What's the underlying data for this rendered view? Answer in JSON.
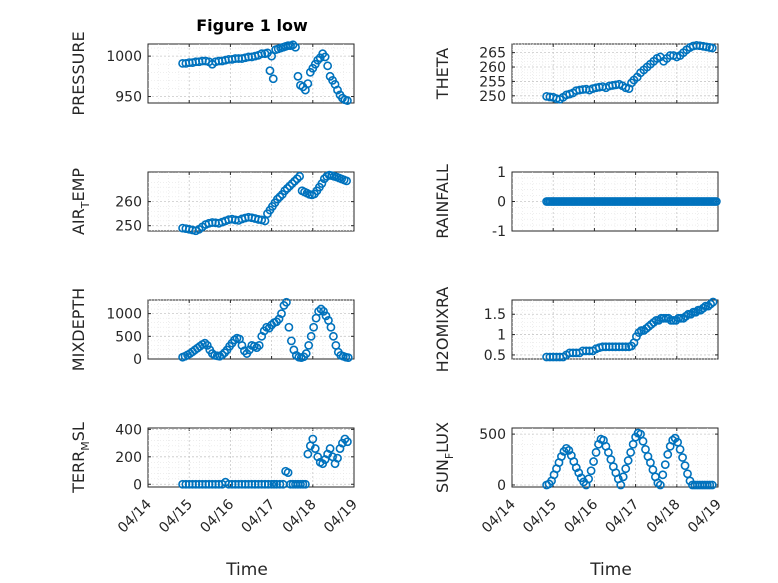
{
  "figure": {
    "title": "Figure 1 low",
    "marker_color": "#0072bd",
    "x_tick_labels": [
      "04/14",
      "04/15",
      "04/16",
      "04/17",
      "04/18",
      "04/19"
    ],
    "xlabel": "Time"
  },
  "chart_data": [
    {
      "type": "scatter",
      "id": "pressure",
      "ylabel": "PRESSURE",
      "ylabel_main": "PRESSURE",
      "ylabel_sub": "",
      "ylabel_rest": "",
      "ylim": [
        942,
        1015
      ],
      "yticks": [
        950,
        1000
      ],
      "x": [
        0.84,
        0.92,
        1.0,
        1.08,
        1.16,
        1.24,
        1.32,
        1.4,
        1.48,
        1.56,
        1.64,
        1.72,
        1.8,
        1.88,
        1.96,
        2.04,
        2.12,
        2.2,
        2.28,
        2.36,
        2.44,
        2.52,
        2.6,
        2.68,
        2.76,
        2.84,
        2.9,
        2.96,
        3.0,
        3.04,
        3.1,
        3.16,
        3.22,
        3.28,
        3.34,
        3.4,
        3.46,
        3.52,
        3.58,
        3.64,
        3.7,
        3.76,
        3.82,
        3.88,
        3.94,
        4.0,
        4.06,
        4.12,
        4.18,
        4.24,
        4.3,
        4.36,
        4.42,
        4.48,
        4.54,
        4.6,
        4.66,
        4.72,
        4.78,
        4.84
      ],
      "y": [
        991,
        991,
        992,
        992,
        993,
        993,
        994,
        994,
        993,
        990,
        993,
        994,
        994,
        995,
        996,
        996,
        997,
        997,
        997,
        998,
        999,
        999,
        1000,
        1001,
        1003,
        1003,
        1004,
        982,
        1000,
        972,
        1008,
        1009,
        1010,
        1011,
        1012,
        1013,
        1013,
        1014,
        1011,
        975,
        964,
        962,
        958,
        966,
        980,
        985,
        990,
        995,
        998,
        1003,
        999,
        988,
        975,
        970,
        965,
        958,
        952,
        948,
        946,
        945
      ]
    },
    {
      "type": "scatter",
      "id": "theta",
      "ylabel": "THETA",
      "ylabel_main": "THETA",
      "ylabel_sub": "",
      "ylabel_rest": "",
      "ylim": [
        247.5,
        268
      ],
      "yticks": [
        250,
        255,
        260,
        265
      ],
      "x": [
        0.84,
        0.92,
        1.0,
        1.08,
        1.16,
        1.24,
        1.32,
        1.4,
        1.48,
        1.56,
        1.64,
        1.72,
        1.8,
        1.88,
        1.96,
        2.04,
        2.12,
        2.2,
        2.28,
        2.36,
        2.44,
        2.52,
        2.6,
        2.68,
        2.76,
        2.84,
        2.9,
        2.96,
        3.04,
        3.12,
        3.2,
        3.28,
        3.36,
        3.44,
        3.52,
        3.6,
        3.68,
        3.76,
        3.84,
        3.92,
        4.0,
        4.08,
        4.16,
        4.24,
        4.32,
        4.4,
        4.48,
        4.56,
        4.64,
        4.72,
        4.8,
        4.86
      ],
      "y": [
        249.8,
        249.6,
        249.5,
        249.0,
        248.8,
        249.5,
        250.3,
        250.6,
        251.0,
        251.8,
        252.0,
        252.2,
        252.3,
        252.0,
        252.5,
        252.8,
        253.0,
        253.2,
        252.8,
        253.4,
        253.6,
        253.8,
        254.0,
        253.5,
        252.8,
        252.5,
        254.5,
        255.5,
        256.5,
        258.0,
        259.0,
        260.0,
        261.0,
        262.0,
        263.0,
        263.5,
        262.0,
        263.0,
        264.0,
        264.0,
        263.5,
        264.0,
        265.0,
        266.0,
        266.8,
        267.3,
        267.5,
        267.4,
        267.2,
        267.0,
        266.8,
        266.6
      ]
    },
    {
      "type": "scatter",
      "id": "air-temp",
      "ylabel": "AIR_TEMP",
      "ylabel_main": "AIR",
      "ylabel_sub": "T",
      "ylabel_rest": "EMP",
      "ylim": [
        247.8,
        272.3
      ],
      "yticks": [
        250,
        260
      ],
      "x": [
        0.84,
        0.92,
        1.0,
        1.08,
        1.16,
        1.24,
        1.32,
        1.4,
        1.48,
        1.56,
        1.64,
        1.72,
        1.8,
        1.88,
        1.96,
        2.04,
        2.12,
        2.2,
        2.28,
        2.36,
        2.44,
        2.52,
        2.6,
        2.68,
        2.76,
        2.84,
        2.9,
        2.96,
        3.02,
        3.08,
        3.14,
        3.2,
        3.26,
        3.32,
        3.38,
        3.44,
        3.5,
        3.56,
        3.62,
        3.68,
        3.74,
        3.8,
        3.86,
        3.92,
        3.98,
        4.04,
        4.1,
        4.16,
        4.22,
        4.28,
        4.34,
        4.4,
        4.46,
        4.52,
        4.58,
        4.64,
        4.7,
        4.76,
        4.82
      ],
      "y": [
        249.0,
        248.8,
        248.5,
        248.2,
        247.9,
        248.5,
        249.5,
        250.5,
        251.0,
        251.3,
        251.2,
        251.0,
        251.5,
        252.0,
        252.5,
        252.7,
        252.4,
        252.2,
        252.8,
        253.2,
        253.5,
        253.3,
        253.0,
        252.6,
        252.4,
        252.0,
        255.0,
        256.5,
        258.0,
        259.5,
        261.0,
        262.0,
        263.0,
        264.5,
        265.5,
        266.5,
        267.5,
        268.5,
        269.5,
        270.5,
        264.5,
        264.0,
        263.5,
        263.0,
        262.8,
        263.2,
        264.5,
        266.0,
        267.5,
        269.5,
        270.5,
        271.0,
        270.8,
        270.5,
        270.2,
        269.8,
        269.4,
        269.0,
        268.6
      ]
    },
    {
      "type": "scatter",
      "id": "rainfall",
      "ylabel": "RAINFALL",
      "ylabel_main": "RAINFALL",
      "ylabel_sub": "",
      "ylabel_rest": "",
      "ylim": [
        -1,
        1
      ],
      "yticks": [
        -1,
        0,
        1
      ],
      "x_range": [
        0.84,
        4.96
      ],
      "x_step": 0.04,
      "constant_y": 0
    },
    {
      "type": "scatter",
      "id": "mixdepth",
      "ylabel": "MIXDEPTH",
      "ylabel_main": "MIXDEPTH",
      "ylabel_sub": "",
      "ylabel_rest": "",
      "ylim": [
        0,
        1300
      ],
      "yticks": [
        0,
        500,
        1000
      ],
      "x": [
        0.84,
        0.9,
        0.96,
        1.02,
        1.08,
        1.14,
        1.2,
        1.26,
        1.32,
        1.38,
        1.44,
        1.5,
        1.56,
        1.62,
        1.68,
        1.74,
        1.8,
        1.86,
        1.92,
        1.98,
        2.04,
        2.1,
        2.16,
        2.22,
        2.28,
        2.34,
        2.4,
        2.46,
        2.52,
        2.58,
        2.64,
        2.7,
        2.76,
        2.82,
        2.88,
        2.94,
        3.0,
        3.06,
        3.12,
        3.18,
        3.24,
        3.3,
        3.36,
        3.42,
        3.48,
        3.54,
        3.6,
        3.66,
        3.72,
        3.78,
        3.84,
        3.9,
        3.96,
        4.02,
        4.08,
        4.14,
        4.2,
        4.26,
        4.32,
        4.38,
        4.44,
        4.5,
        4.56,
        4.62,
        4.68,
        4.74,
        4.8,
        4.86
      ],
      "y": [
        40,
        60,
        90,
        120,
        160,
        200,
        240,
        280,
        320,
        350,
        300,
        200,
        120,
        80,
        70,
        60,
        90,
        140,
        200,
        280,
        350,
        420,
        460,
        440,
        300,
        180,
        120,
        200,
        300,
        280,
        250,
        300,
        500,
        620,
        700,
        680,
        750,
        800,
        820,
        880,
        1000,
        1180,
        1250,
        700,
        400,
        200,
        80,
        40,
        30,
        50,
        120,
        300,
        500,
        700,
        900,
        1050,
        1100,
        1050,
        950,
        850,
        700,
        500,
        300,
        150,
        80,
        60,
        40,
        30
      ]
    },
    {
      "type": "scatter",
      "id": "h2omixra",
      "ylabel": "H2OMIXRA",
      "ylabel_main": "H2OMIXRA",
      "ylabel_sub": "",
      "ylabel_rest": "",
      "ylim": [
        0.4,
        1.85
      ],
      "yticks": [
        0.5,
        1,
        1.5
      ],
      "x": [
        0.84,
        0.92,
        1.0,
        1.08,
        1.16,
        1.24,
        1.32,
        1.4,
        1.48,
        1.56,
        1.64,
        1.72,
        1.8,
        1.88,
        1.96,
        2.04,
        2.12,
        2.2,
        2.28,
        2.36,
        2.44,
        2.52,
        2.6,
        2.68,
        2.76,
        2.84,
        2.9,
        2.96,
        3.02,
        3.08,
        3.14,
        3.2,
        3.26,
        3.32,
        3.38,
        3.44,
        3.5,
        3.56,
        3.62,
        3.68,
        3.74,
        3.8,
        3.86,
        3.92,
        3.98,
        4.04,
        4.1,
        4.16,
        4.22,
        4.28,
        4.34,
        4.4,
        4.46,
        4.52,
        4.58,
        4.64,
        4.7,
        4.76,
        4.82,
        4.88
      ],
      "y": [
        0.45,
        0.45,
        0.45,
        0.45,
        0.45,
        0.45,
        0.5,
        0.55,
        0.55,
        0.55,
        0.55,
        0.6,
        0.6,
        0.6,
        0.6,
        0.65,
        0.68,
        0.7,
        0.7,
        0.7,
        0.7,
        0.7,
        0.7,
        0.7,
        0.7,
        0.7,
        0.72,
        0.8,
        0.95,
        1.05,
        1.1,
        1.1,
        1.15,
        1.2,
        1.25,
        1.3,
        1.35,
        1.35,
        1.4,
        1.4,
        1.4,
        1.4,
        1.35,
        1.35,
        1.35,
        1.4,
        1.4,
        1.4,
        1.45,
        1.5,
        1.5,
        1.55,
        1.55,
        1.6,
        1.6,
        1.65,
        1.7,
        1.7,
        1.75,
        1.8
      ]
    },
    {
      "type": "scatter",
      "id": "terr-msl",
      "ylabel": "TERR_MSL",
      "ylabel_main": "TERR",
      "ylabel_sub": "M",
      "ylabel_rest": "SL",
      "ylim": [
        -20,
        410
      ],
      "yticks": [
        0,
        200,
        400
      ],
      "x": [
        0.84,
        0.92,
        1.0,
        1.08,
        1.16,
        1.24,
        1.32,
        1.4,
        1.48,
        1.56,
        1.64,
        1.72,
        1.8,
        1.88,
        1.96,
        2.04,
        2.12,
        2.2,
        2.28,
        2.36,
        2.44,
        2.52,
        2.6,
        2.68,
        2.76,
        2.84,
        2.92,
        3.0,
        3.06,
        3.12,
        3.2,
        3.28,
        3.34,
        3.4,
        3.46,
        3.52,
        3.58,
        3.64,
        3.7,
        3.76,
        3.82,
        3.88,
        3.94,
        4.0,
        4.06,
        4.12,
        4.18,
        4.24,
        4.3,
        4.36,
        4.42,
        4.48,
        4.54,
        4.6,
        4.66,
        4.72,
        4.78,
        4.84
      ],
      "y": [
        0,
        0,
        0,
        0,
        0,
        0,
        0,
        0,
        0,
        0,
        0,
        0,
        0,
        15,
        0,
        0,
        0,
        0,
        0,
        0,
        0,
        0,
        0,
        0,
        0,
        0,
        0,
        0,
        0,
        0,
        0,
        0,
        95,
        85,
        0,
        0,
        0,
        0,
        0,
        0,
        0,
        220,
        280,
        330,
        260,
        200,
        160,
        150,
        180,
        220,
        260,
        200,
        150,
        190,
        260,
        300,
        330,
        310
      ]
    },
    {
      "type": "scatter",
      "id": "sun-flux",
      "ylabel": "SUN_FLUX",
      "ylabel_main": "SUN",
      "ylabel_sub": "F",
      "ylabel_rest": "LUX",
      "ylim": [
        -20,
        560
      ],
      "yticks": [
        0,
        500
      ],
      "x": [
        0.84,
        0.9,
        0.96,
        1.02,
        1.08,
        1.14,
        1.2,
        1.26,
        1.32,
        1.38,
        1.44,
        1.5,
        1.56,
        1.62,
        1.68,
        1.74,
        1.8,
        1.86,
        1.92,
        1.98,
        2.04,
        2.1,
        2.16,
        2.22,
        2.28,
        2.34,
        2.4,
        2.46,
        2.52,
        2.58,
        2.64,
        2.7,
        2.76,
        2.82,
        2.88,
        2.94,
        3.0,
        3.06,
        3.12,
        3.18,
        3.24,
        3.3,
        3.36,
        3.42,
        3.48,
        3.54,
        3.6,
        3.66,
        3.72,
        3.78,
        3.84,
        3.9,
        3.96,
        4.02,
        4.08,
        4.14,
        4.2,
        4.26,
        4.32,
        4.38,
        4.44,
        4.5,
        4.56,
        4.62,
        4.68,
        4.74,
        4.8,
        4.86
      ],
      "y": [
        0,
        10,
        40,
        100,
        160,
        220,
        280,
        330,
        360,
        340,
        290,
        230,
        170,
        120,
        70,
        30,
        0,
        60,
        140,
        230,
        320,
        400,
        450,
        440,
        380,
        320,
        250,
        180,
        120,
        60,
        0,
        80,
        160,
        240,
        320,
        400,
        470,
        510,
        500,
        430,
        350,
        280,
        220,
        150,
        80,
        20,
        0,
        100,
        200,
        300,
        380,
        440,
        460,
        420,
        350,
        270,
        190,
        110,
        40,
        0,
        0,
        0,
        0,
        0,
        0,
        0,
        0,
        0
      ]
    }
  ]
}
